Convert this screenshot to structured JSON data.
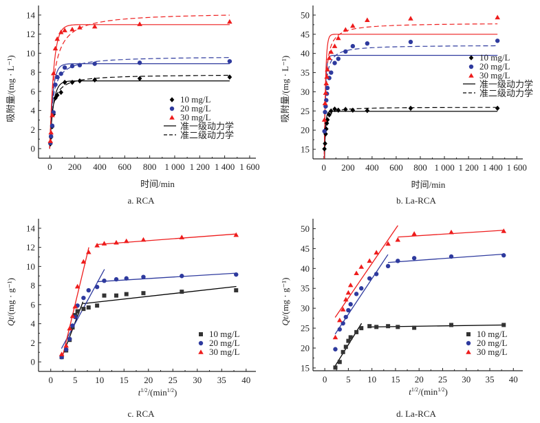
{
  "figure": {
    "colors": {
      "10 mg/L": "#000000",
      "20 mg/L": "#2e3a9e",
      "30 mg/L": "#ee1c1c"
    }
  },
  "chart_data": [
    {
      "id": "a",
      "type": "scatter",
      "caption": "a.  RCA",
      "title": "",
      "xlabel": "时间/min",
      "ylabel": "吸附量/(mg · L⁻¹)",
      "xlim": [
        -90,
        1650
      ],
      "ylim": [
        -1,
        15
      ],
      "xticks": [
        0,
        200,
        400,
        600,
        800,
        1000,
        1200,
        1400,
        1600
      ],
      "xtick_labels": [
        "0",
        "200",
        "400",
        "600",
        "800",
        "1 000",
        "1 200",
        "1 400",
        "1 600"
      ],
      "yticks": [
        0,
        2,
        4,
        6,
        8,
        10,
        12,
        14
      ],
      "ytick_labels": [
        "0",
        "2",
        "4",
        "6",
        "8",
        "10",
        "12",
        "14"
      ],
      "grid": false,
      "legend_position": "center-right",
      "legend": [
        "10 mg/L",
        "20 mg/L",
        "30 mg/L",
        "准一级动力学",
        "准二级动力学"
      ],
      "series": [
        {
          "name": "10 mg/L",
          "marker": "diamond",
          "x": [
            5,
            10,
            20,
            30,
            45,
            60,
            90,
            120,
            180,
            240,
            360,
            720,
            1440
          ],
          "y": [
            0.5,
            1.2,
            2.3,
            3.6,
            5.3,
            5.6,
            5.9,
            6.95,
            6.95,
            7.1,
            7.2,
            7.35,
            7.5
          ],
          "pfo": {
            "qe": 7.1,
            "k": 0.035
          },
          "pso": {
            "qe": 7.8,
            "k": 0.006
          }
        },
        {
          "name": "20 mg/L",
          "marker": "circle",
          "x": [
            5,
            10,
            20,
            30,
            45,
            60,
            90,
            120,
            180,
            240,
            360,
            720,
            1440
          ],
          "y": [
            0.6,
            1.3,
            2.4,
            3.8,
            6.7,
            7.5,
            7.85,
            8.5,
            8.65,
            8.75,
            8.9,
            9.0,
            9.15
          ],
          "pfo": {
            "qe": 8.9,
            "k": 0.04
          },
          "pso": {
            "qe": 9.7,
            "k": 0.0045
          }
        },
        {
          "name": "30 mg/L",
          "marker": "triangle",
          "x": [
            5,
            10,
            20,
            30,
            45,
            60,
            90,
            120,
            180,
            240,
            360,
            720,
            1440
          ],
          "y": [
            0.8,
            1.7,
            3.5,
            7.9,
            10.5,
            11.5,
            12.2,
            12.4,
            12.5,
            12.7,
            12.8,
            13.05,
            13.3
          ],
          "pfo": {
            "qe": 13.0,
            "k": 0.032
          },
          "pso": {
            "qe": 14.3,
            "k": 0.0022
          }
        }
      ]
    },
    {
      "id": "b",
      "type": "scatter",
      "caption": "b.  La-RCA",
      "title": "",
      "xlabel": "时间/min",
      "ylabel": "吸附量/(mg · L⁻¹)",
      "xlim": [
        -90,
        1650
      ],
      "ylim": [
        12.5,
        52.5
      ],
      "xticks": [
        0,
        200,
        400,
        600,
        800,
        1000,
        1200,
        1400,
        1600
      ],
      "xtick_labels": [
        "0",
        "200",
        "400",
        "600",
        "800",
        "1 000",
        "1 200",
        "1 400",
        "1 600"
      ],
      "yticks": [
        15,
        20,
        25,
        30,
        35,
        40,
        45,
        50
      ],
      "ytick_labels": [
        "15",
        "20",
        "25",
        "30",
        "35",
        "40",
        "45",
        "50"
      ],
      "grid": false,
      "legend_position": "center-right",
      "legend": [
        "10 mg/L",
        "20 mg/L",
        "30 mg/L",
        "准一级动力学",
        "准二级动力学"
      ],
      "series": [
        {
          "name": "10 mg/L",
          "marker": "diamond",
          "x": [
            5,
            10,
            15,
            20,
            25,
            30,
            45,
            60,
            90,
            120,
            180,
            240,
            360,
            720,
            1440
          ],
          "y": [
            15.1,
            16.5,
            19.0,
            20.3,
            21.8,
            22.7,
            24.0,
            25.0,
            25.5,
            25.2,
            25.4,
            25.2,
            25.1,
            25.7,
            25.7
          ],
          "pfo": {
            "qe": 24.9,
            "k": 0.12
          },
          "pso": {
            "qe": 26.0,
            "k": 0.009
          }
        },
        {
          "name": "20 mg/L",
          "marker": "circle",
          "x": [
            5,
            10,
            15,
            20,
            25,
            30,
            45,
            60,
            90,
            120,
            180,
            240,
            360,
            720,
            1440
          ],
          "y": [
            19.7,
            24.7,
            26.2,
            27.8,
            29.5,
            31.0,
            33.6,
            35.0,
            37.5,
            38.6,
            40.5,
            41.9,
            42.6,
            43.0,
            43.3
          ],
          "pfo": {
            "qe": 39.5,
            "k": 0.1
          },
          "pso": {
            "qe": 42.2,
            "k": 0.0035
          }
        },
        {
          "name": "30 mg/L",
          "marker": "triangle",
          "x": [
            5,
            10,
            15,
            20,
            25,
            30,
            45,
            60,
            90,
            120,
            180,
            240,
            360,
            720,
            1440
          ],
          "y": [
            22.7,
            27.0,
            29.7,
            32.2,
            33.9,
            35.8,
            38.8,
            40.4,
            41.9,
            44.0,
            46.2,
            47.2,
            48.7,
            49.1,
            49.4
          ],
          "pfo": {
            "qe": 45.0,
            "k": 0.09
          },
          "pso": {
            "qe": 48.0,
            "k": 0.0024
          }
        }
      ]
    },
    {
      "id": "c",
      "type": "scatter",
      "caption": "c.  RCA",
      "title": "",
      "xlabel": "t^1/2/(min^1/2)",
      "ylabel": "Qt/(mg · g⁻¹)",
      "xlim": [
        -2.5,
        42
      ],
      "ylim": [
        -1,
        15
      ],
      "xticks": [
        0,
        5,
        10,
        15,
        20,
        25,
        30,
        35,
        40
      ],
      "xtick_labels": [
        "0",
        "5",
        "10",
        "15",
        "20",
        "25",
        "30",
        "35",
        "40"
      ],
      "yticks": [
        0,
        2,
        4,
        6,
        8,
        10,
        12,
        14
      ],
      "ytick_labels": [
        "0",
        "2",
        "4",
        "6",
        "8",
        "10",
        "12",
        "14"
      ],
      "grid": false,
      "legend_position": "bottom-right",
      "legend": [
        "10 mg/L",
        "20 mg/L",
        "30 mg/L"
      ],
      "series": [
        {
          "name": "10 mg/L",
          "marker": "square",
          "x": [
            2.24,
            3.16,
            3.87,
            4.47,
            5.0,
            5.48,
            6.71,
            7.75,
            9.49,
            10.95,
            13.42,
            15.49,
            18.97,
            26.83,
            37.95
          ],
          "y": [
            0.5,
            1.2,
            2.3,
            3.6,
            4.9,
            5.3,
            5.55,
            5.7,
            5.9,
            6.95,
            6.95,
            7.1,
            7.2,
            7.35,
            7.5
          ],
          "fit_lines": [
            {
              "x": [
                2.3,
                6.6
              ],
              "y": [
                0.5,
                6.3
              ]
            },
            {
              "x": [
                6.6,
                38
              ],
              "y": [
                6.1,
                7.9
              ]
            }
          ]
        },
        {
          "name": "20 mg/L",
          "marker": "circle",
          "x": [
            2.24,
            3.16,
            3.87,
            4.47,
            5.0,
            5.48,
            6.71,
            7.75,
            9.49,
            10.95,
            13.42,
            15.49,
            18.97,
            26.83,
            37.95
          ],
          "y": [
            0.5,
            1.3,
            2.4,
            3.8,
            4.7,
            5.9,
            6.7,
            7.5,
            7.85,
            8.5,
            8.65,
            8.75,
            8.9,
            9.0,
            9.15
          ],
          "fit_lines": [
            {
              "x": [
                2.2,
                11.0
              ],
              "y": [
                1.4,
                9.7
              ]
            },
            {
              "x": [
                9.5,
                38
              ],
              "y": [
                8.4,
                9.3
              ]
            }
          ]
        },
        {
          "name": "30 mg/L",
          "marker": "triangle",
          "x": [
            2.24,
            3.16,
            3.87,
            4.47,
            5.0,
            5.48,
            6.71,
            7.75,
            9.49,
            10.95,
            13.42,
            15.49,
            18.97,
            26.83,
            37.95
          ],
          "y": [
            0.8,
            1.7,
            3.5,
            4.8,
            5.8,
            7.9,
            10.5,
            11.5,
            12.2,
            12.4,
            12.5,
            12.65,
            12.8,
            13.05,
            13.3
          ],
          "fit_lines": [
            {
              "x": [
                2.3,
                7.8
              ],
              "y": [
                0.3,
                12.0
              ]
            },
            {
              "x": [
                9.5,
                38
              ],
              "y": [
                12.3,
                13.4
              ]
            }
          ]
        }
      ]
    },
    {
      "id": "d",
      "type": "scatter",
      "caption": "d.  La-RCA",
      "title": "",
      "xlabel": "t^1/2/(min^1/2)",
      "ylabel": "Qt/(mg · g⁻¹)",
      "xlim": [
        -2.5,
        42
      ],
      "ylim": [
        14.3,
        52.5
      ],
      "xticks": [
        0,
        5,
        10,
        15,
        20,
        25,
        30,
        35,
        40
      ],
      "xtick_labels": [
        "0",
        "5",
        "10",
        "15",
        "20",
        "25",
        "30",
        "35",
        "40"
      ],
      "yticks": [
        15,
        20,
        25,
        30,
        35,
        40,
        45,
        50
      ],
      "ytick_labels": [
        "15",
        "20",
        "25",
        "30",
        "35",
        "40",
        "45",
        "50"
      ],
      "grid": false,
      "legend_position": "bottom-right",
      "legend": [
        "10 mg/L",
        "20 mg/L",
        "30 mg/L"
      ],
      "series": [
        {
          "name": "10 mg/L",
          "marker": "square",
          "x": [
            2.24,
            3.16,
            3.87,
            4.47,
            5.0,
            5.48,
            6.71,
            7.75,
            9.49,
            10.95,
            13.42,
            15.49,
            18.97,
            26.83,
            37.95
          ],
          "y": [
            15.1,
            16.5,
            19.0,
            20.3,
            21.8,
            22.7,
            24.0,
            25.0,
            25.5,
            25.3,
            25.5,
            25.3,
            25.1,
            25.8,
            25.8
          ],
          "fit_lines": [
            {
              "x": [
                2.2,
                7.8
              ],
              "y": [
                15.5,
                26.2
              ]
            },
            {
              "x": [
                9.5,
                38
              ],
              "y": [
                25.3,
                25.8
              ]
            }
          ]
        },
        {
          "name": "20 mg/L",
          "marker": "circle",
          "x": [
            2.24,
            3.16,
            3.87,
            4.47,
            5.0,
            5.48,
            6.71,
            7.75,
            9.49,
            10.95,
            13.42,
            15.49,
            18.97,
            26.83,
            37.95
          ],
          "y": [
            19.7,
            24.7,
            26.2,
            27.8,
            29.5,
            31.0,
            33.6,
            35.0,
            37.5,
            38.6,
            40.6,
            41.9,
            42.6,
            43.0,
            43.3
          ],
          "fit_lines": [
            {
              "x": [
                2.2,
                13.4
              ],
              "y": [
                23.5,
                43.5
              ]
            },
            {
              "x": [
                13.4,
                38
              ],
              "y": [
                41.5,
                43.6
              ]
            }
          ]
        },
        {
          "name": "30 mg/L",
          "marker": "triangle",
          "x": [
            2.24,
            3.16,
            3.87,
            4.47,
            5.0,
            5.48,
            6.71,
            7.75,
            9.49,
            10.95,
            13.42,
            15.49,
            18.97,
            26.83,
            37.95
          ],
          "y": [
            22.7,
            27.0,
            29.7,
            32.2,
            33.9,
            35.8,
            38.8,
            40.4,
            41.9,
            44.0,
            46.2,
            47.2,
            48.7,
            49.1,
            49.4
          ],
          "fit_lines": [
            {
              "x": [
                2.2,
                15.5
              ],
              "y": [
                27.7,
                50.8
              ]
            },
            {
              "x": [
                15.5,
                38
              ],
              "y": [
                47.9,
                49.6
              ]
            }
          ]
        }
      ]
    }
  ]
}
